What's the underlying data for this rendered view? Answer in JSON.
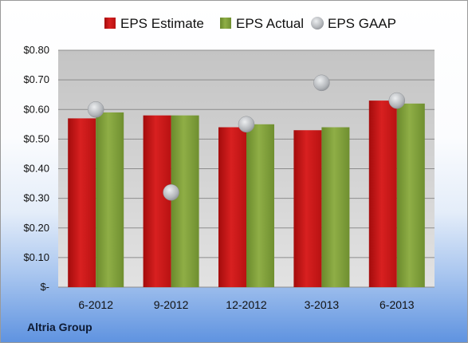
{
  "company_label": "Altria Group",
  "chart_data": {
    "type": "bar",
    "categories": [
      "6-2012",
      "9-2012",
      "12-2012",
      "3-2013",
      "6-2013"
    ],
    "series": [
      {
        "name": "EPS Estimate",
        "kind": "bar",
        "color": "#c81818",
        "values": [
          0.57,
          0.58,
          0.54,
          0.53,
          0.63
        ]
      },
      {
        "name": "EPS Actual",
        "kind": "bar",
        "color": "#7f9e3a",
        "values": [
          0.59,
          0.58,
          0.55,
          0.54,
          0.62
        ]
      },
      {
        "name": "EPS GAAP",
        "kind": "marker",
        "color": "#b9bcc0",
        "values": [
          0.6,
          0.32,
          0.55,
          0.69,
          0.63
        ]
      }
    ],
    "y_ticks": [
      0,
      0.1,
      0.2,
      0.3,
      0.4,
      0.5,
      0.6,
      0.7,
      0.8
    ],
    "y_tick_labels": [
      "$-",
      "$0.10",
      "$0.20",
      "$0.30",
      "$0.40",
      "$0.50",
      "$0.60",
      "$0.70",
      "$0.80"
    ],
    "ylim": [
      0,
      0.8
    ],
    "grid": true,
    "legend_position": "top"
  }
}
